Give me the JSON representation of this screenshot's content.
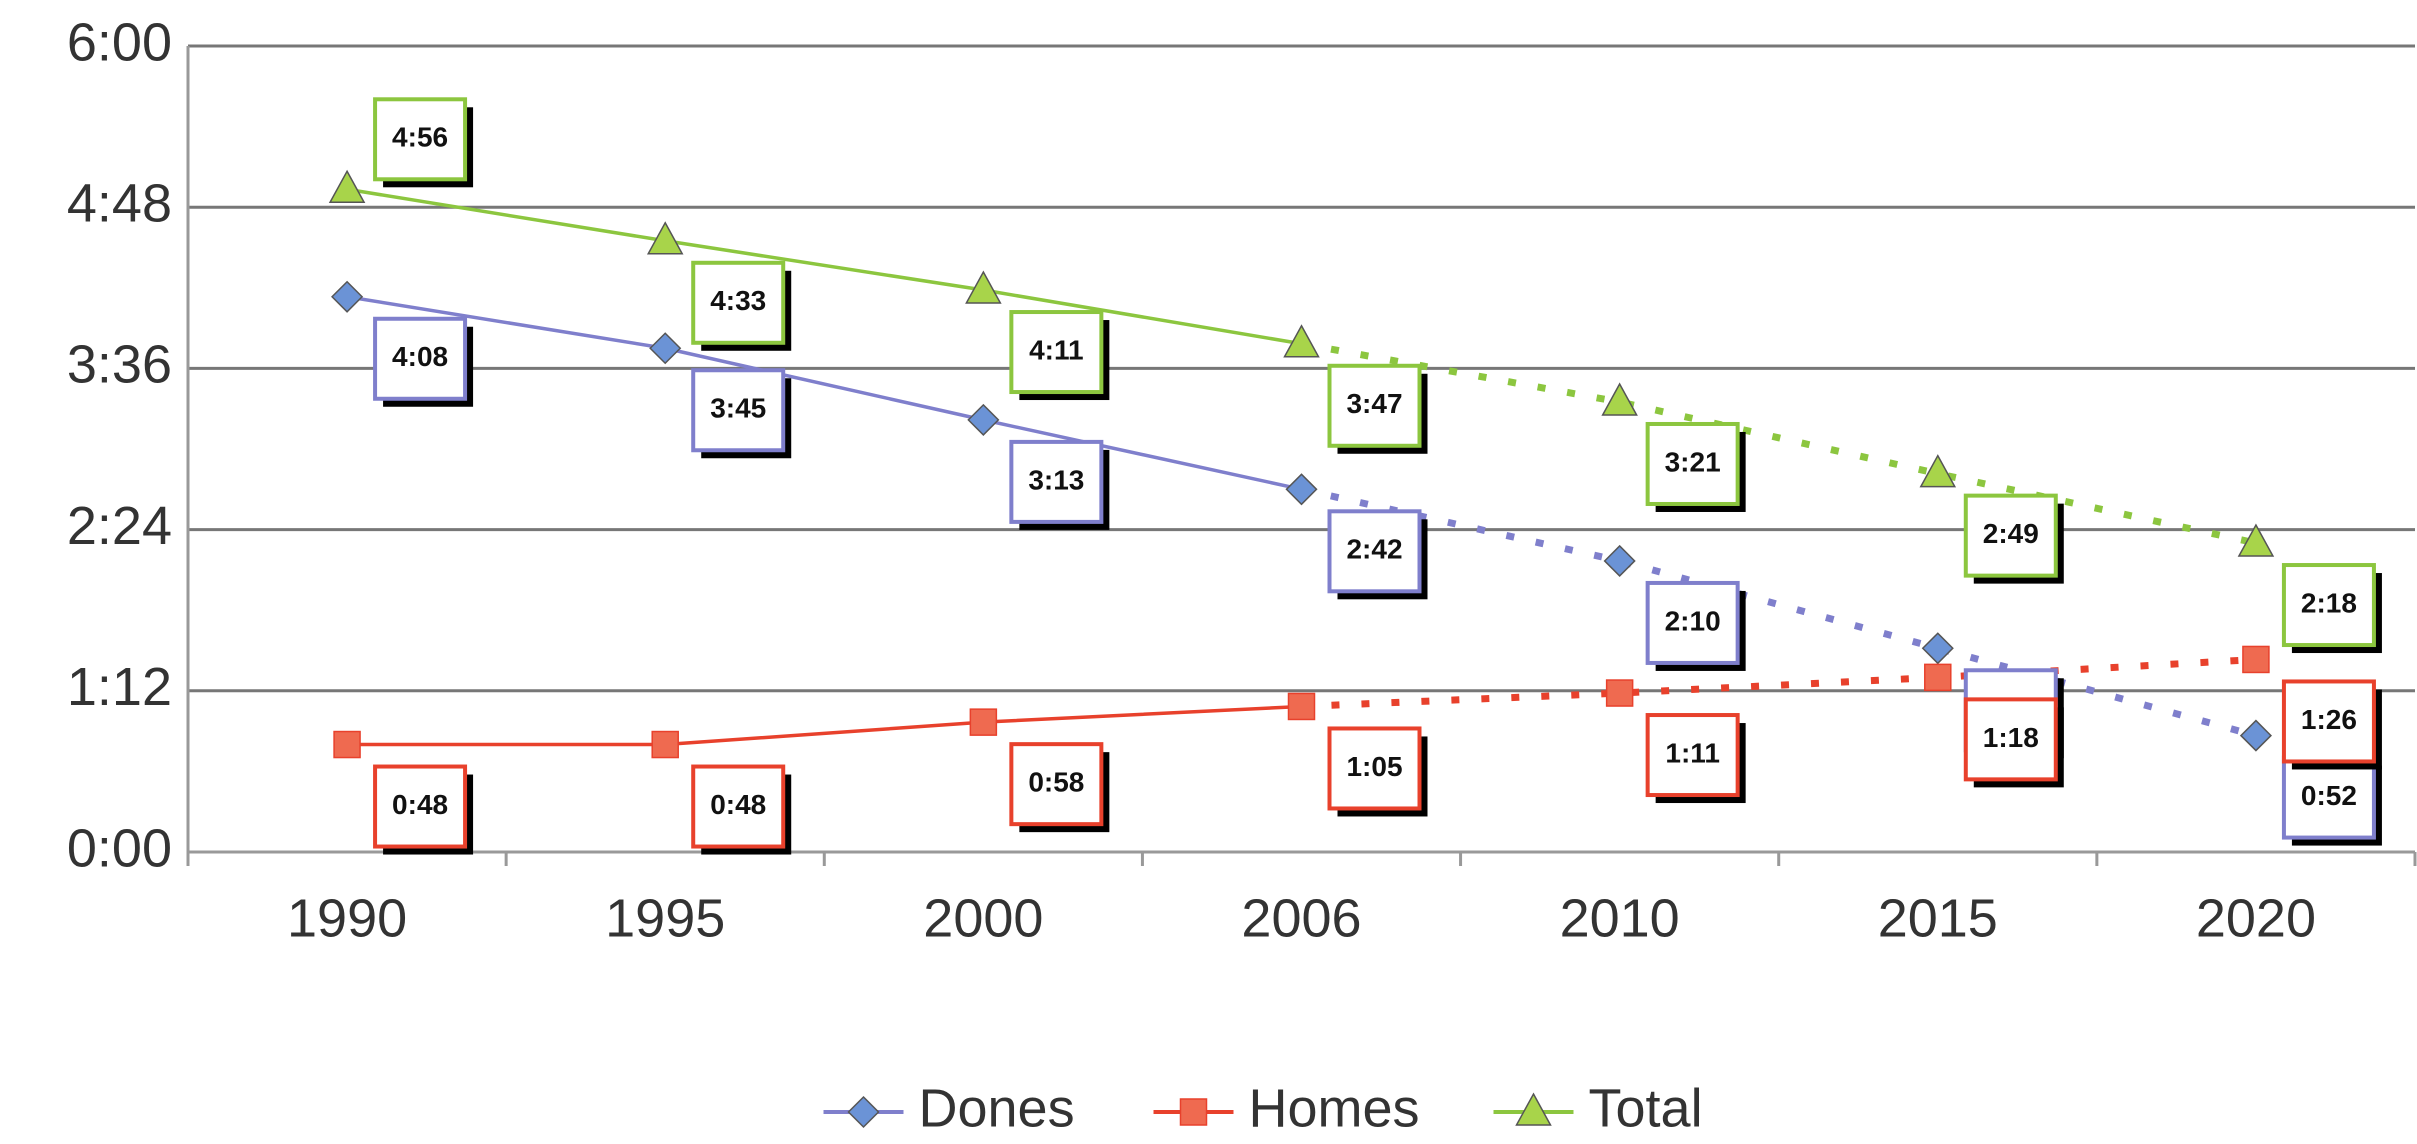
{
  "chart_data": {
    "type": "line",
    "categories": [
      "1990",
      "1995",
      "2000",
      "2006",
      "2010",
      "2015",
      "2020"
    ],
    "ylim": [
      0,
      360
    ],
    "yticks": [
      {
        "value": 0,
        "label": "0:00"
      },
      {
        "value": 72,
        "label": "1:12"
      },
      {
        "value": 144,
        "label": "2:24"
      },
      {
        "value": 216,
        "label": "3:36"
      },
      {
        "value": 288,
        "label": "4:48"
      },
      {
        "value": 360,
        "label": "6:00"
      }
    ],
    "grid": true,
    "dashed_from": 3,
    "legend": "bottom",
    "series": [
      {
        "name": "Dones",
        "color": "#7f7fcc",
        "marker": "diamond",
        "marker_color": "#6b93d6",
        "values": [
          248,
          225,
          193,
          162,
          130,
          91,
          52
        ],
        "value_labels": [
          "4:08",
          "3:45",
          "3:13",
          "2:42",
          "2:10",
          "1:31",
          "0:52"
        ]
      },
      {
        "name": "Homes",
        "color": "#e8412c",
        "marker": "square",
        "marker_color": "#ef6a50",
        "values": [
          48,
          48,
          58,
          65,
          71,
          78,
          86
        ],
        "value_labels": [
          "0:48",
          "0:48",
          "0:58",
          "1:05",
          "1:11",
          "1:18",
          "1:26"
        ]
      },
      {
        "name": "Total",
        "color": "#8cc63f",
        "marker": "triangle",
        "marker_color": "#a8d44a",
        "values": [
          296,
          273,
          251,
          227,
          201,
          169,
          138
        ],
        "value_labels": [
          "4:56",
          "4:33",
          "4:11",
          "3:47",
          "3:21",
          "2:49",
          "2:18"
        ]
      }
    ]
  }
}
